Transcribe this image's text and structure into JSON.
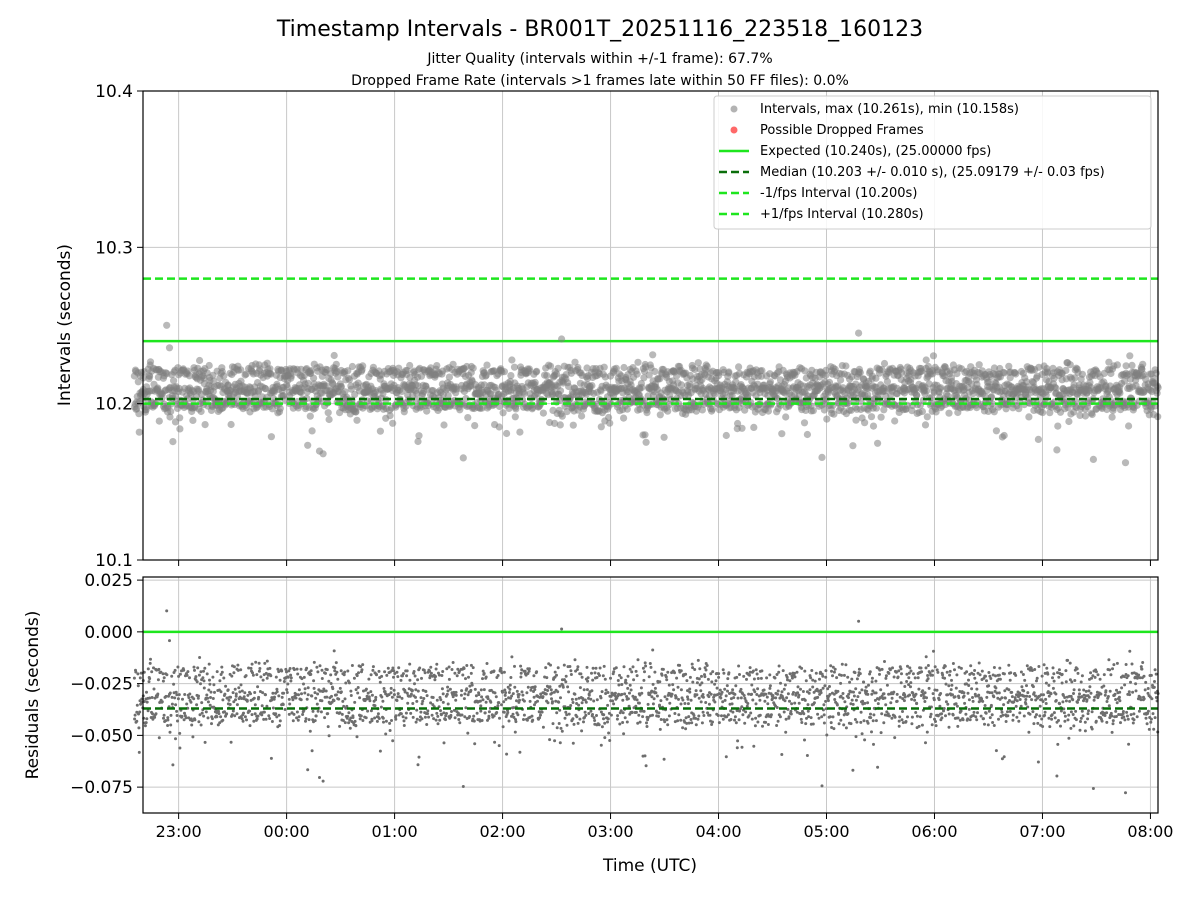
{
  "header": {
    "title": "Timestamp Intervals - BR001T_20251116_223518_160123",
    "subtitle_jitter": "Jitter Quality (intervals within +/-1 frame): 67.7%",
    "subtitle_dropped": "Dropped Frame Rate (intervals >1 frames late within 50 FF files): 0.0%"
  },
  "colors": {
    "points": "#808080",
    "dropped": "#ff4d4d",
    "expected": "#1ee61e",
    "median": "#0a6e0a",
    "bound": "#1ee61e",
    "grid": "#c8c8c8"
  },
  "chart_data": [
    {
      "type": "scatter",
      "id": "intervals",
      "ylabel": "Intervals (seconds)",
      "xlabel": "",
      "ylim": [
        10.1,
        10.4
      ],
      "yticks": [
        "10.1",
        "10.2",
        "10.3",
        "10.4"
      ],
      "ytick_values": [
        10.1,
        10.2,
        10.3,
        10.4
      ],
      "x_range_hours": [
        -1.33,
        8.07
      ],
      "x_tick_hours": [
        -1,
        0,
        1,
        2,
        3,
        4,
        5,
        6,
        7,
        8
      ],
      "data_start_hour": -1.41,
      "data_end_hour": 8.07,
      "grid": true,
      "legend_position": "top-right",
      "legend": [
        "Intervals, max (10.261s), min (10.158s)",
        "Possible Dropped Frames",
        "Expected (10.240s), (25.00000 fps)",
        "Median (10.203 +/- 0.010 s), (25.09179 +/- 0.03 fps)",
        "-1/fps Interval (10.200s)",
        "+1/fps Interval (10.280s)"
      ],
      "max_interval": 10.261,
      "min_interval": 10.158,
      "dropped_frames": 0,
      "lines": {
        "expected": 10.24,
        "median": 10.203,
        "minus_one_fps": 10.2,
        "plus_one_fps": 10.28
      },
      "clusters": [
        10.199,
        10.209,
        10.22
      ],
      "cluster_weights": [
        0.3,
        0.42,
        0.28
      ],
      "cluster_spread": 0.0045,
      "outlier_fraction": 0.12,
      "outlier_spread": 0.014,
      "point_count": 2700
    },
    {
      "type": "scatter",
      "id": "residuals",
      "ylabel": "Residuals (seconds)",
      "xlabel": "Time (UTC)",
      "ylim": [
        -0.0875,
        0.0265
      ],
      "yticks": [
        "−0.075",
        "−0.050",
        "−0.025",
        "0.000",
        "0.025"
      ],
      "ytick_values": [
        -0.075,
        -0.05,
        -0.025,
        0.0,
        0.025
      ],
      "xticks": [
        "23:00",
        "00:00",
        "01:00",
        "02:00",
        "03:00",
        "04:00",
        "05:00",
        "06:00",
        "07:00",
        "08:00"
      ],
      "grid": true,
      "lines": {
        "zero": 0.0,
        "median": -0.037
      },
      "residual_offset": 10.24
    }
  ]
}
